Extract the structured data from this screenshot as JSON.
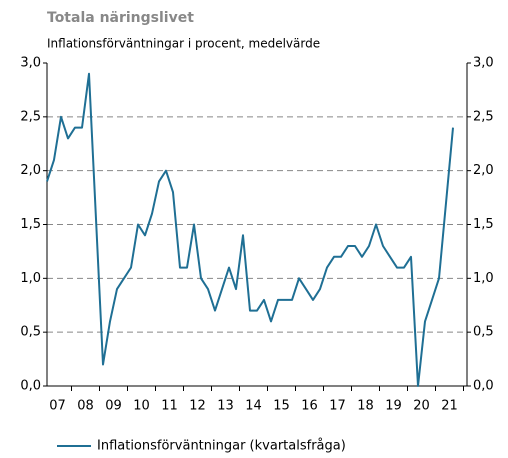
{
  "chart_data": {
    "type": "line",
    "title": "Totala näringslivet",
    "subtitle": "Inflationsförväntningar i procent, medelvärde",
    "categories": [
      null,
      "07",
      null,
      null,
      null,
      "08",
      null,
      null,
      null,
      "09",
      null,
      null,
      null,
      "10",
      null,
      null,
      null,
      "11",
      null,
      null,
      null,
      "12",
      null,
      null,
      null,
      "13",
      null,
      null,
      null,
      "14",
      null,
      null,
      null,
      "15",
      null,
      null,
      null,
      "16",
      null,
      null,
      null,
      "17",
      null,
      null,
      null,
      "18",
      null,
      null,
      null,
      "19",
      null,
      null,
      null,
      "20",
      null,
      null,
      null,
      "21",
      null
    ],
    "series": [
      {
        "name": "Inflationsförväntningar (kvartalsfråga)",
        "color": "#1f6f94",
        "values": [
          1.9,
          2.1,
          2.5,
          2.3,
          2.4,
          2.4,
          2.9,
          1.55,
          0.2,
          0.6,
          0.9,
          1.0,
          1.1,
          1.5,
          1.4,
          1.6,
          1.9,
          2.0,
          1.8,
          1.1,
          1.1,
          1.5,
          1.0,
          0.9,
          0.7,
          0.9,
          1.1,
          0.9,
          1.4,
          0.7,
          0.7,
          0.8,
          0.6,
          0.8,
          0.8,
          0.8,
          1.0,
          0.9,
          0.8,
          0.9,
          1.1,
          1.2,
          1.2,
          1.3,
          1.3,
          1.2,
          1.3,
          1.5,
          1.3,
          1.2,
          1.1,
          1.1,
          1.2,
          0.0,
          0.6,
          0.8,
          1.0,
          1.7,
          2.4
        ]
      }
    ],
    "ylim": [
      0,
      3
    ],
    "yticks": [
      {
        "value": 0,
        "label": "0,0"
      },
      {
        "value": 0.5,
        "label": "0,5"
      },
      {
        "value": 1,
        "label": "1,0"
      },
      {
        "value": 1.5,
        "label": "1,5"
      },
      {
        "value": 2,
        "label": "2,0"
      },
      {
        "value": 2.5,
        "label": "2,5"
      },
      {
        "value": 3,
        "label": "3,0"
      }
    ],
    "y2lim": [
      0,
      3
    ],
    "y2ticks": [
      {
        "value": 0,
        "label": "0,0"
      },
      {
        "value": 0.5,
        "label": "0,5"
      },
      {
        "value": 1,
        "label": "1,0"
      },
      {
        "value": 1.5,
        "label": "1,5"
      },
      {
        "value": 2,
        "label": "2,0"
      },
      {
        "value": 2.5,
        "label": "2,5"
      },
      {
        "value": 3,
        "label": "3,0"
      }
    ],
    "grid": true,
    "legend": "bottom"
  }
}
